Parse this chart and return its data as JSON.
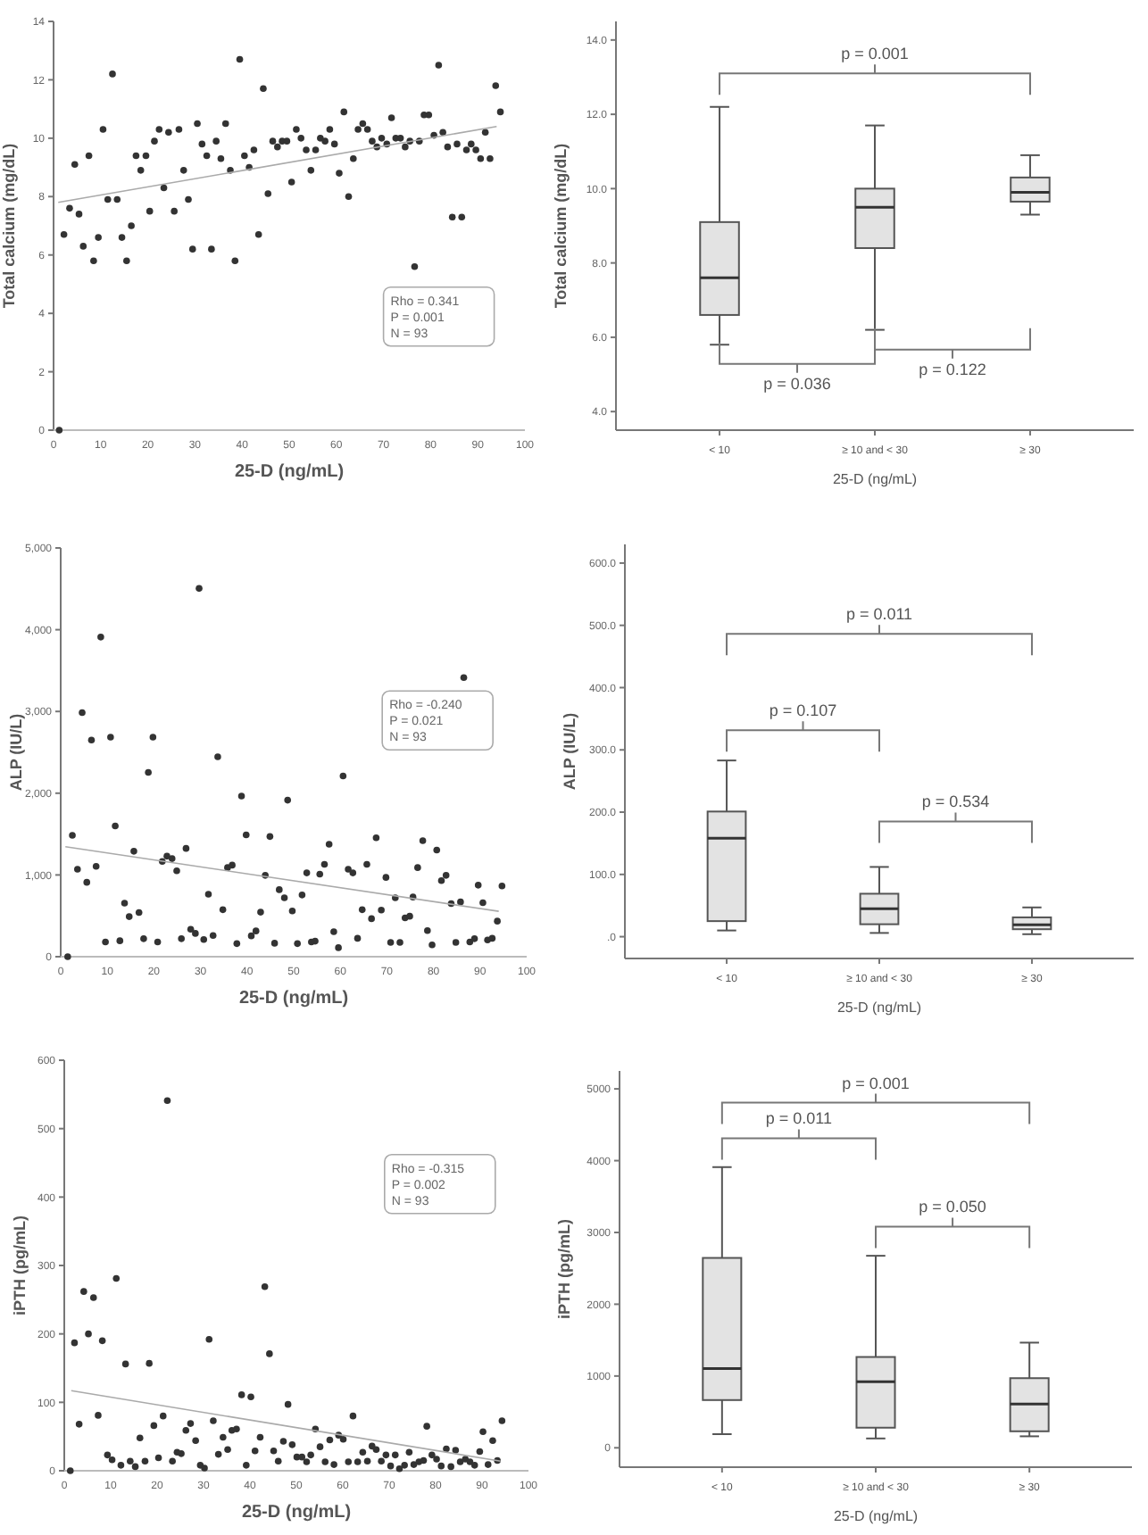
{
  "chart_data": [
    {
      "type": "scatter",
      "xlabel": "25-D (ng/mL)",
      "ylabel": "Total calcium (mg/dL)",
      "xlim": [
        0,
        100
      ],
      "xticks": [
        0,
        10,
        20,
        30,
        40,
        50,
        60,
        70,
        80,
        90,
        100
      ],
      "ylim": [
        0,
        14
      ],
      "yticks": [
        0,
        2,
        4,
        6,
        8,
        10,
        12,
        14
      ],
      "annotations": [
        "Rho = 0.341",
        "P = 0.001",
        "N = 93"
      ],
      "series": [
        {
          "type": "scatter",
          "marker": "circle",
          "color": "#333333",
          "x": [
            1.2,
            2.2,
            3.4,
            4.5,
            5.4,
            6.3,
            7.5,
            8.5,
            9.5,
            10.5,
            11.5,
            12.5,
            13.5,
            14.5,
            15.5,
            16.5,
            17.5,
            18.5,
            19.6,
            20.4,
            21.4,
            22.4,
            23.4,
            24.4,
            25.6,
            26.6,
            27.6,
            28.6,
            29.5,
            30.5,
            31.5,
            32.5,
            33.5,
            34.5,
            35.5,
            36.5,
            37.5,
            38.5,
            39.5,
            40.5,
            41.5,
            42.5,
            43.5,
            44.5,
            45.5,
            46.5,
            47.5,
            48.5,
            49.5,
            50.5,
            51.5,
            52.5,
            53.6,
            54.6,
            55.6,
            56.6,
            57.6,
            58.6,
            59.6,
            60.6,
            61.6,
            62.6,
            63.6,
            64.6,
            65.6,
            66.6,
            67.6,
            68.6,
            69.6,
            70.7,
            71.7,
            72.6,
            73.6,
            74.6,
            75.6,
            76.6,
            77.6,
            78.6,
            79.6,
            80.7,
            81.7,
            82.6,
            83.6,
            84.6,
            85.6,
            86.6,
            87.6,
            88.6,
            89.6,
            90.6,
            91.6,
            92.6,
            93.8,
            94.8
          ],
          "values": [
            0,
            6.7,
            7.6,
            9.1,
            7.4,
            6.3,
            9.4,
            5.8,
            6.6,
            10.3,
            7.9,
            12.2,
            7.9,
            6.6,
            5.8,
            7.0,
            9.4,
            8.9,
            9.4,
            7.5,
            9.9,
            10.3,
            8.3,
            10.2,
            7.5,
            10.3,
            8.9,
            7.9,
            6.2,
            10.5,
            9.8,
            9.4,
            6.2,
            9.9,
            9.3,
            10.5,
            8.9,
            5.8,
            12.7,
            9.4,
            9.0,
            9.6,
            6.7,
            11.7,
            8.1,
            9.9,
            9.7,
            9.9,
            9.9,
            8.5,
            10.3,
            10.0,
            9.6,
            8.9,
            9.6,
            10.0,
            9.9,
            10.3,
            9.8,
            8.8,
            10.9,
            8.0,
            9.3,
            10.3,
            10.5,
            10.3,
            9.9,
            9.7,
            10.0,
            9.8,
            10.7,
            10.0,
            10.0,
            9.7,
            9.9,
            5.6,
            9.9,
            10.8,
            10.8,
            10.1,
            12.5,
            10.2,
            9.7,
            7.3,
            9.8,
            7.3,
            9.6,
            9.8,
            9.6,
            9.3,
            10.2,
            9.3,
            11.8,
            10.9
          ]
        },
        {
          "type": "line",
          "color": "#aaaaaa",
          "x": [
            1,
            94
          ],
          "values": [
            7.8,
            10.4
          ]
        }
      ]
    },
    {
      "type": "box",
      "xlabel": "25-D (ng/mL)",
      "ylabel": "Total calcium (mg/dL)",
      "categories": [
        "< 10",
        "≥ 10 and < 30",
        "≥ 30"
      ],
      "color": "#e3e3e3",
      "ylim": [
        3.5,
        14.5
      ],
      "yticks": [
        {
          "value": 4,
          "label": "4.0"
        },
        {
          "value": 6,
          "label": "6.0"
        },
        {
          "value": 8,
          "label": "8.0"
        },
        {
          "value": 10,
          "label": "10.0"
        },
        {
          "value": 12,
          "label": "12.0"
        },
        {
          "value": 14,
          "label": "14.0"
        }
      ],
      "annotations": [
        "p = 0.001",
        "p = 0.036",
        "p = 0.122"
      ],
      "boxes": [
        {
          "low": 5.8,
          "q1": 6.6,
          "median": 7.6,
          "q3": 9.1,
          "high": 12.2
        },
        {
          "low": 6.2,
          "q1": 8.4,
          "median": 9.5,
          "q3": 10.0,
          "high": 11.7
        },
        {
          "low": 9.3,
          "q1": 9.65,
          "median": 9.9,
          "q3": 10.3,
          "high": 10.9
        }
      ]
    },
    {
      "type": "scatter",
      "xlabel": "25-D (ng/mL)",
      "ylabel": "ALP (IU/L)",
      "xlim": [
        0,
        100
      ],
      "xticks": [
        0,
        10,
        20,
        30,
        40,
        50,
        60,
        70,
        80,
        90,
        100
      ],
      "ylim": [
        0,
        5000
      ],
      "yticks": [
        0,
        {
          "value": 1000,
          "label": "1,000"
        },
        {
          "value": 2000,
          "label": "2,000"
        },
        {
          "value": 3000,
          "label": "3,000"
        },
        {
          "value": 4000,
          "label": "4,000"
        },
        {
          "value": 5000,
          "label": "5,000"
        }
      ],
      "annotations": [
        "Rho = -0.240",
        "P = 0.021",
        "N = 93"
      ],
      "series": [
        {
          "type": "scatter",
          "marker": "circle",
          "color": "#333333",
          "x": [
            1.5,
            2.5,
            3.6,
            4.6,
            5.6,
            6.6,
            7.6,
            8.6,
            9.6,
            10.7,
            11.7,
            12.7,
            13.7,
            14.7,
            15.7,
            16.8,
            17.8,
            18.8,
            19.8,
            20.8,
            21.8,
            22.8,
            23.9,
            24.9,
            25.9,
            26.9,
            27.9,
            28.9,
            29.7,
            30.7,
            31.7,
            32.7,
            33.7,
            34.8,
            35.8,
            36.8,
            37.8,
            38.8,
            39.8,
            40.9,
            41.9,
            42.9,
            43.9,
            44.9,
            45.9,
            46.9,
            48.0,
            48.7,
            49.7,
            50.8,
            51.8,
            52.8,
            53.8,
            54.6,
            55.6,
            56.6,
            57.6,
            58.6,
            59.6,
            60.6,
            61.7,
            62.7,
            63.7,
            64.7,
            65.7,
            66.7,
            67.7,
            68.8,
            69.8,
            70.8,
            71.8,
            72.8,
            73.9,
            74.9,
            75.6,
            76.6,
            77.7,
            78.7,
            79.7,
            80.7,
            81.7,
            82.7,
            83.8,
            84.8,
            85.8,
            86.5,
            87.8,
            88.8,
            89.6,
            90.6,
            91.6,
            92.6,
            93.7,
            94.7
          ],
          "values": [
            0,
            1485,
            1070,
            2985,
            910,
            2650,
            1105,
            3910,
            180,
            2685,
            1600,
            195,
            655,
            490,
            1290,
            540,
            220,
            2255,
            2685,
            180,
            1165,
            1230,
            1200,
            1050,
            220,
            1325,
            335,
            285,
            4505,
            210,
            765,
            260,
            2445,
            575,
            1090,
            1120,
            160,
            1965,
            1490,
            255,
            315,
            545,
            995,
            1470,
            165,
            820,
            720,
            1915,
            560,
            160,
            755,
            1025,
            180,
            190,
            1010,
            1130,
            1375,
            305,
            110,
            2210,
            1070,
            1025,
            225,
            575,
            1130,
            465,
            1455,
            570,
            970,
            175,
            720,
            175,
            475,
            495,
            730,
            1090,
            1420,
            320,
            145,
            1305,
            930,
            995,
            650,
            175,
            670,
            3415,
            180,
            220,
            875,
            660,
            205,
            225,
            435,
            865
          ]
        },
        {
          "type": "line",
          "color": "#aaaaaa",
          "x": [
            1,
            94
          ],
          "values": [
            1345,
            555
          ]
        }
      ]
    },
    {
      "type": "box",
      "xlabel": "25-D (ng/mL)",
      "ylabel": "ALP (IU/L)",
      "categories": [
        "< 10",
        "≥ 10 and < 30",
        "≥ 30"
      ],
      "color": "#e3e3e3",
      "ylim": [
        -35,
        630
      ],
      "yticks": [
        {
          "value": 0,
          "label": ".0"
        },
        {
          "value": 100,
          "label": "100.0"
        },
        {
          "value": 200,
          "label": "200.0"
        },
        {
          "value": 300,
          "label": "300.0"
        },
        {
          "value": 400,
          "label": "400.0"
        },
        {
          "value": 500,
          "label": "500.0"
        },
        {
          "value": 600,
          "label": "600.0"
        }
      ],
      "annotations": [
        "p = 0.011",
        "p = 0.107",
        "p = 0.534"
      ],
      "boxes": [
        {
          "low": 10,
          "q1": 25,
          "median": 158,
          "q3": 201,
          "high": 283
        },
        {
          "low": 6,
          "q1": 20,
          "median": 45,
          "q3": 69,
          "high": 112
        },
        {
          "low": 4,
          "q1": 12,
          "median": 19,
          "q3": 31,
          "high": 47
        }
      ]
    },
    {
      "type": "scatter",
      "xlabel": "25-D (ng/mL)",
      "ylabel": "iPTH (pg/mL)",
      "xlim": [
        0,
        100
      ],
      "xticks": [
        0,
        10,
        20,
        30,
        40,
        50,
        60,
        70,
        80,
        90,
        100
      ],
      "ylim": [
        0,
        600
      ],
      "yticks": [
        0,
        100,
        200,
        300,
        400,
        500,
        600
      ],
      "annotations": [
        "Rho = -0.315",
        "P = 0.002",
        "N = 93"
      ],
      "series": [
        {
          "type": "scatter",
          "marker": "circle",
          "color": "#333333",
          "x": [
            1.3,
            2.2,
            3.2,
            4.2,
            5.2,
            6.3,
            7.3,
            8.2,
            9.3,
            10.3,
            11.2,
            12.2,
            13.2,
            14.2,
            15.3,
            16.3,
            17.4,
            18.3,
            19.3,
            20.3,
            21.3,
            22.2,
            23.3,
            24.3,
            25.2,
            26.2,
            27.2,
            28.3,
            29.3,
            30.2,
            31.2,
            32.1,
            33.2,
            34.2,
            35.2,
            36.1,
            37.1,
            38.2,
            39.2,
            40.2,
            41.1,
            42.2,
            43.2,
            44.2,
            45.1,
            46.1,
            47.2,
            48.2,
            49.1,
            50.1,
            51.2,
            52.2,
            53.1,
            54.1,
            55.1,
            56.2,
            57.2,
            58.1,
            59.1,
            60.1,
            61.2,
            62.2,
            63.2,
            64.3,
            65.3,
            66.3,
            67.2,
            68.3,
            69.3,
            70.3,
            71.3,
            72.2,
            73.3,
            74.3,
            75.3,
            76.4,
            77.4,
            78.1,
            79.2,
            80.2,
            81.2,
            82.3,
            83.3,
            84.3,
            85.3,
            86.4,
            87.4,
            88.4,
            89.5,
            90.2,
            91.3,
            92.3,
            93.3,
            94.3
          ],
          "values": [
            0,
            187,
            68,
            262,
            200,
            253,
            81,
            190,
            23,
            16,
            281,
            8,
            156,
            14,
            6,
            48,
            14,
            157,
            66,
            19,
            80,
            541,
            14,
            27,
            25,
            59,
            69,
            44,
            8,
            4,
            192,
            73,
            24,
            49,
            31,
            59,
            61,
            111,
            8,
            108,
            29,
            49,
            269,
            171,
            29,
            14,
            43,
            97,
            38,
            20,
            20,
            13,
            23,
            61,
            35,
            13,
            45,
            9,
            52,
            46,
            13,
            80,
            13,
            27,
            14,
            36,
            31,
            14,
            23,
            7,
            23,
            3,
            8,
            27,
            9,
            13,
            15,
            65,
            23,
            17,
            7,
            32,
            6,
            30,
            13,
            17,
            13,
            8,
            28,
            57,
            9,
            44,
            15,
            73
          ]
        },
        {
          "type": "line",
          "color": "#aaaaaa",
          "x": [
            1.5,
            94
          ],
          "values": [
            117,
            14
          ]
        }
      ]
    },
    {
      "type": "box",
      "xlabel": "25-D (ng/mL)",
      "ylabel": "iPTH (pg/mL)",
      "categories": [
        "< 10",
        "≥ 10 and < 30",
        "≥ 30"
      ],
      "color": "#e3e3e3",
      "ylim": [
        -270,
        5250
      ],
      "yticks": [
        0,
        1000,
        2000,
        3000,
        4000,
        5000
      ],
      "annotations": [
        "p = 0.001",
        "p = 0.011",
        "p = 0.050"
      ],
      "boxes": [
        {
          "low": 190,
          "q1": 665,
          "median": 1105,
          "q3": 2645,
          "high": 3910
        },
        {
          "low": 130,
          "q1": 280,
          "median": 920,
          "q3": 1265,
          "high": 2675
        },
        {
          "low": 160,
          "q1": 230,
          "median": 610,
          "q3": 970,
          "high": 1465
        }
      ]
    }
  ]
}
